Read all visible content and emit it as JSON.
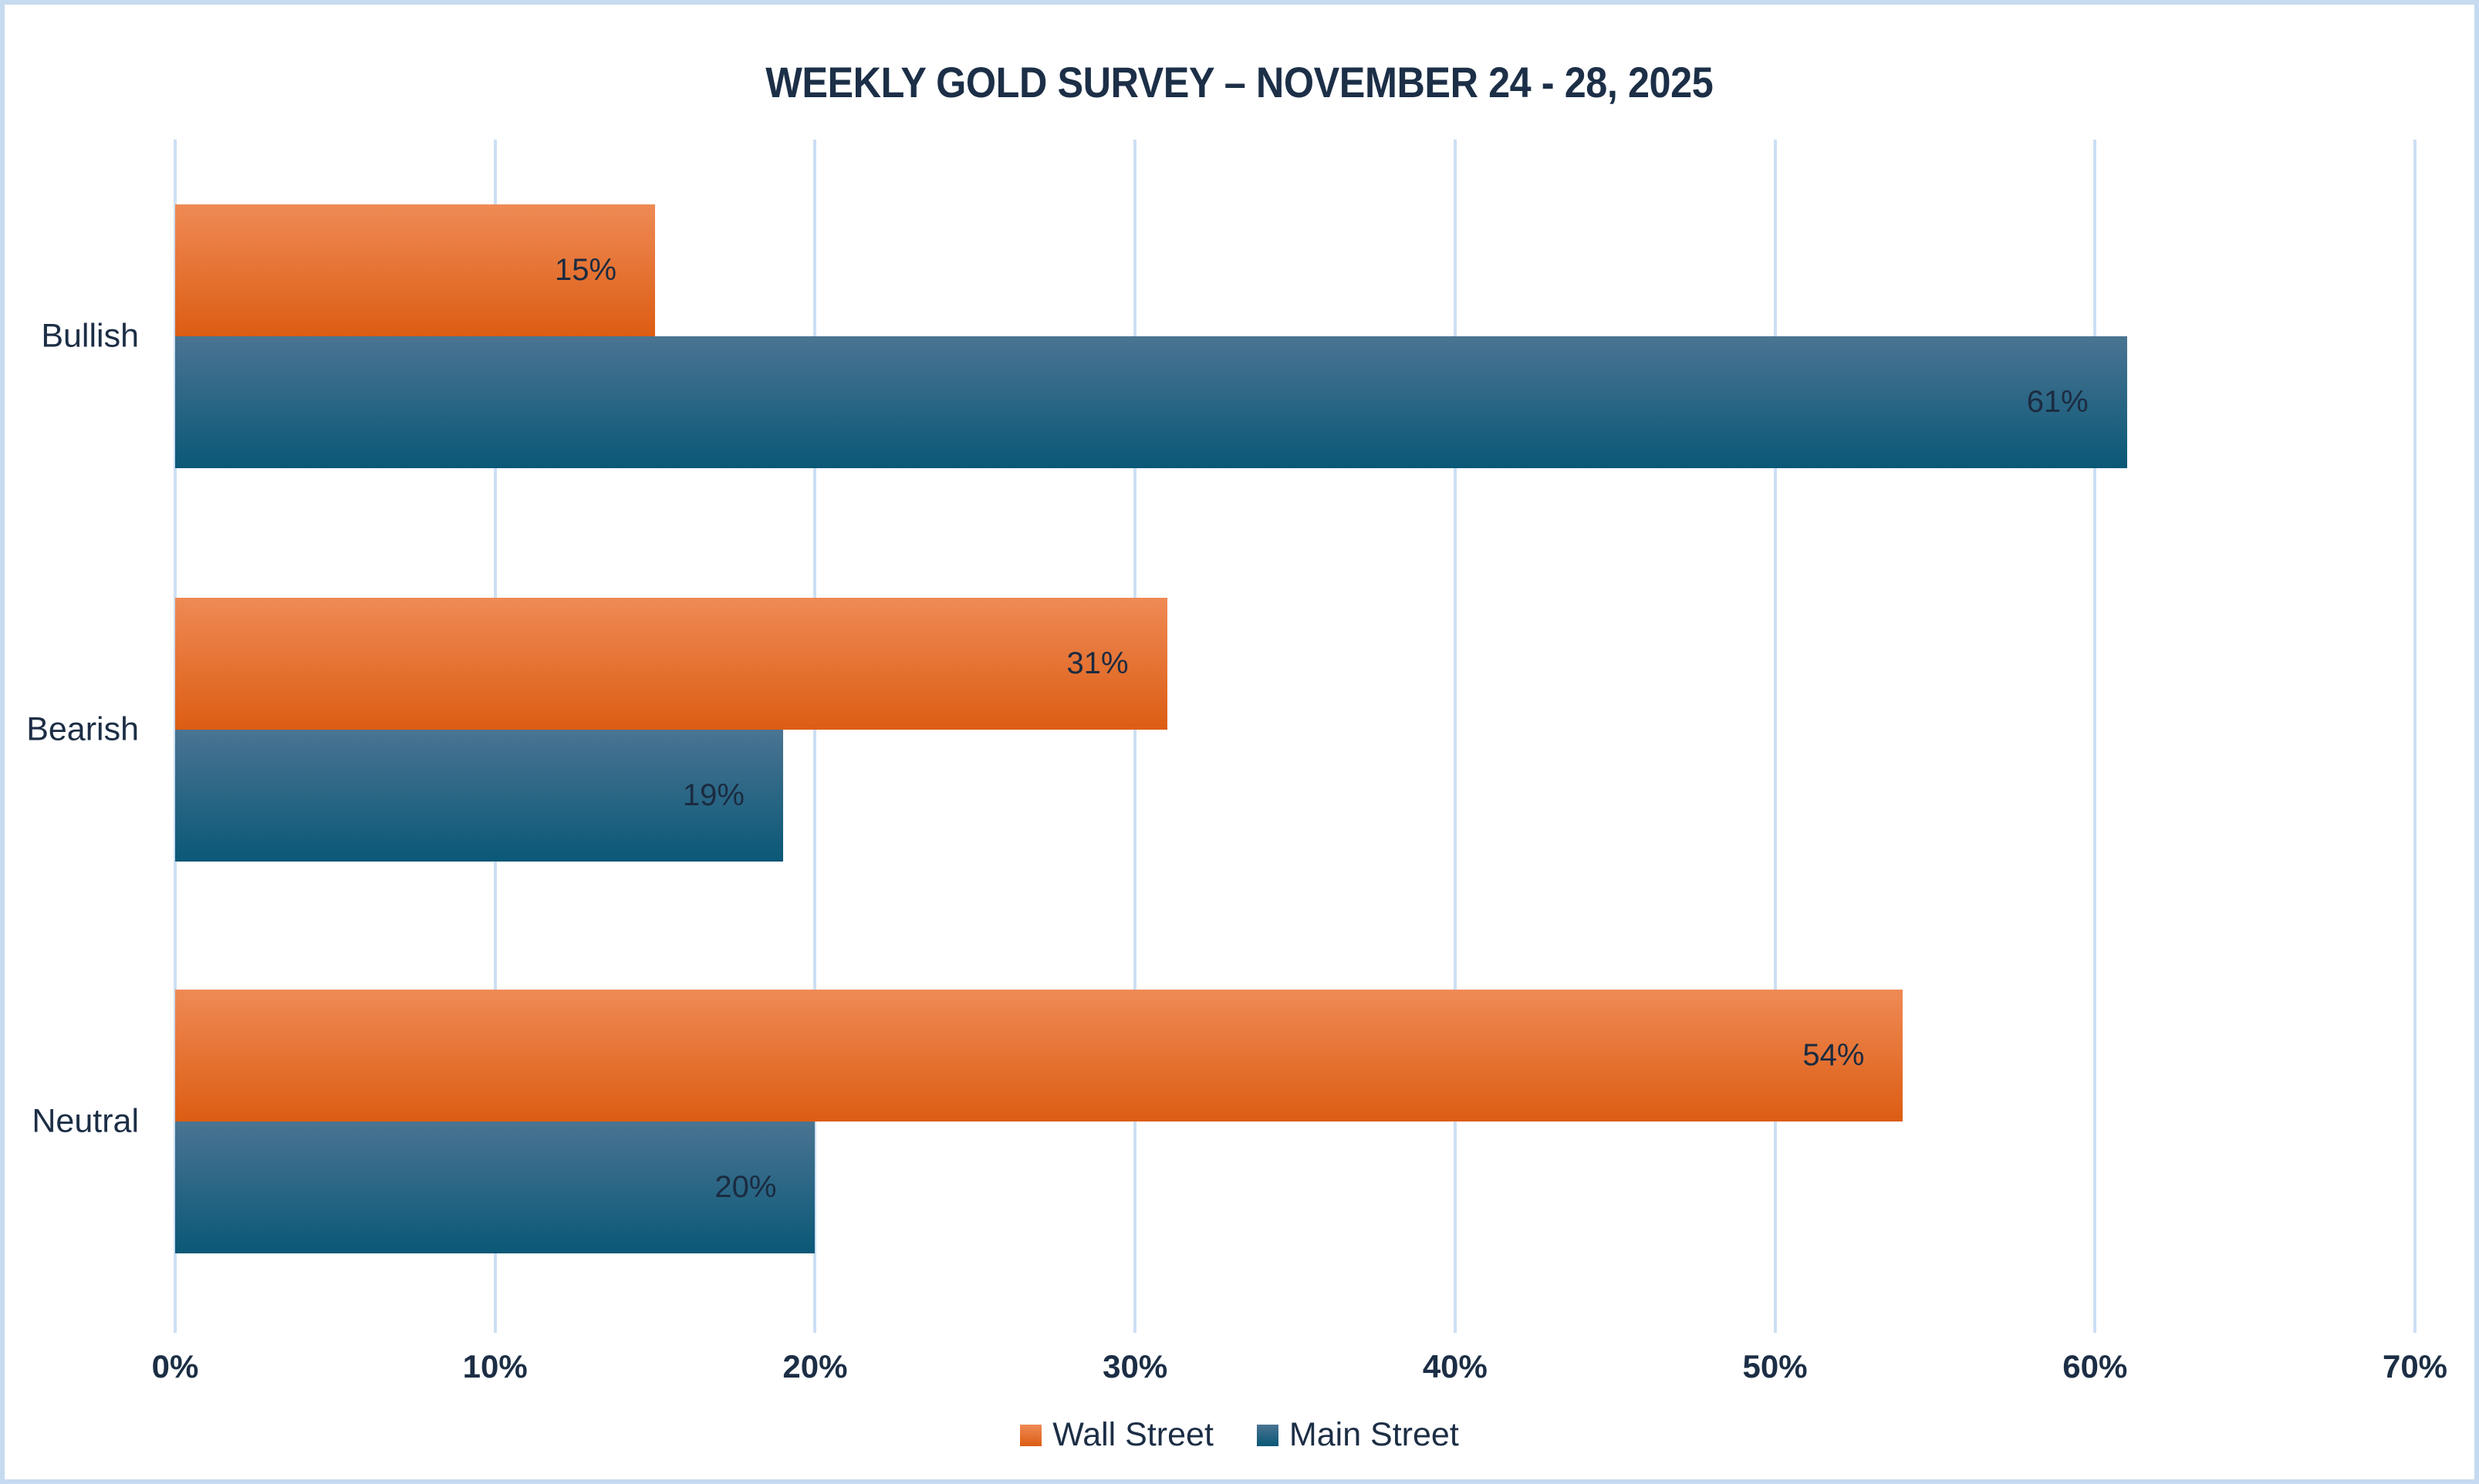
{
  "title": "WEEKLY GOLD SURVEY – NOVEMBER 24 - 28, 2025",
  "colors": {
    "ink": "#1c2e45",
    "frame_border": "#c6daf0",
    "gridline": "#ccdff4",
    "background": "#ffffff"
  },
  "chart_data": {
    "type": "bar",
    "orientation": "horizontal",
    "title": "WEEKLY GOLD SURVEY – NOVEMBER 24 - 28, 2025",
    "categories": [
      "Bullish",
      "Bearish",
      "Neutral"
    ],
    "series": [
      {
        "name": "Wall Street",
        "values": [
          15,
          31,
          54
        ],
        "data_labels": [
          "15%",
          "31%",
          "54%"
        ],
        "gradient_top": "#ef8a55",
        "gradient_bottom": "#dc5d13"
      },
      {
        "name": "Main Street",
        "values": [
          61,
          19,
          20
        ],
        "data_labels": [
          "61%",
          "19%",
          "20%"
        ],
        "gradient_top": "#4a7492",
        "gradient_bottom": "#0a5877"
      }
    ],
    "xlim": [
      0,
      70
    ],
    "x_tick_step": 10,
    "x_tick_labels": [
      "0%",
      "10%",
      "20%",
      "30%",
      "40%",
      "50%",
      "60%",
      "70%"
    ],
    "xlabel": "",
    "ylabel": "",
    "grid": true,
    "legend_position": "bottom",
    "legend_entries": [
      "Wall Street",
      "Main Street"
    ]
  }
}
